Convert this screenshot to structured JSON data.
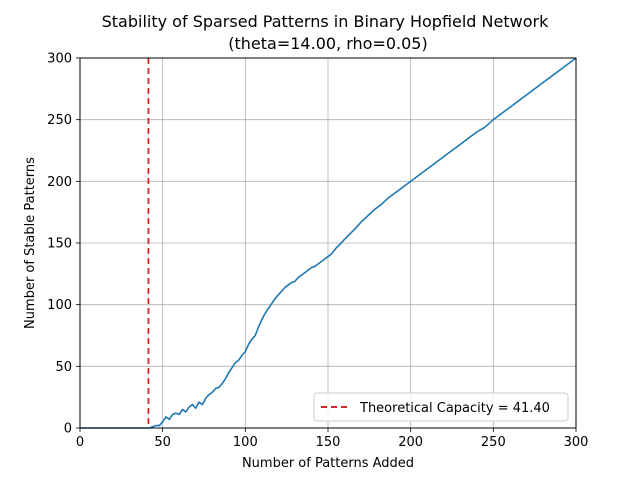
{
  "chart_data": {
    "type": "line",
    "title_line1": "Stability of Sparsed Patterns in Binary Hopfield Network",
    "title_line2": "(theta=14.00, rho=0.05)",
    "xlabel": "Number of Patterns Added",
    "ylabel": "Number of Stable Patterns",
    "xlim": [
      0,
      300
    ],
    "ylim": [
      0,
      300
    ],
    "xticks": [
      0,
      50,
      100,
      150,
      200,
      250,
      300
    ],
    "yticks": [
      0,
      50,
      100,
      150,
      200,
      250,
      300
    ],
    "grid": true,
    "legend_position": "lower-right",
    "series": [
      {
        "color": "#1f77b4",
        "x": [
          0,
          10,
          20,
          30,
          40,
          42,
          44,
          46,
          48,
          50,
          52,
          54,
          56,
          58,
          60,
          62,
          64,
          66,
          68,
          70,
          72,
          74,
          76,
          78,
          80,
          82,
          84,
          86,
          88,
          90,
          92,
          94,
          96,
          98,
          100,
          102,
          104,
          106,
          108,
          110,
          112,
          114,
          116,
          118,
          120,
          122,
          124,
          126,
          128,
          130,
          132,
          134,
          136,
          138,
          140,
          142,
          144,
          146,
          148,
          150,
          152,
          155,
          158,
          160,
          163,
          166,
          170,
          174,
          178,
          182,
          186,
          190,
          195,
          200,
          205,
          210,
          215,
          220,
          225,
          230,
          235,
          240,
          245,
          250,
          260,
          270,
          280,
          290,
          300
        ],
        "y": [
          0,
          0,
          0,
          0,
          0,
          0,
          1,
          2,
          2,
          5,
          9,
          7,
          11,
          12,
          11,
          15,
          13,
          17,
          19,
          16,
          21,
          19,
          24,
          27,
          29,
          32,
          33,
          36,
          40,
          45,
          49,
          53,
          55,
          59,
          62,
          68,
          72,
          75,
          82,
          88,
          93,
          97,
          101,
          105,
          108,
          111,
          114,
          116,
          118,
          119,
          122,
          124,
          126,
          128,
          130,
          131,
          133,
          135,
          137,
          139,
          141,
          146,
          150,
          153,
          157,
          161,
          167,
          172,
          177,
          181,
          186,
          190,
          195,
          200,
          205,
          210,
          215,
          220,
          225,
          230,
          235,
          240,
          244,
          250,
          260,
          270,
          280,
          290,
          300
        ]
      }
    ],
    "reference_line": {
      "x": 41.4,
      "color": "#d62728",
      "style": "dashed",
      "label": "Theoretical Capacity = 41.40"
    }
  }
}
